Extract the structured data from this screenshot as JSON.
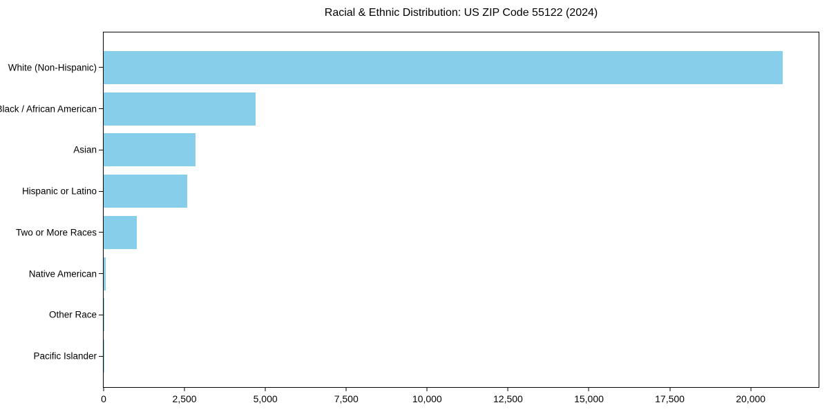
{
  "chart": {
    "title": "Racial & Ethnic Distribution: US ZIP Code 55122 (2024)"
  },
  "chart_data": {
    "type": "bar",
    "orientation": "horizontal",
    "title": "Racial & Ethnic Distribution: US ZIP Code 55122 (2024)",
    "xlabel": "",
    "ylabel": "",
    "categories": [
      "White (Non-Hispanic)",
      "Black / African American",
      "Asian",
      "Hispanic or Latino",
      "Two or More Races",
      "Native American",
      "Other Race",
      "Pacific Islander"
    ],
    "values": [
      21000,
      4700,
      2840,
      2590,
      1020,
      60,
      15,
      5
    ],
    "xlim": [
      0,
      22100
    ],
    "x_ticks": [
      0,
      2500,
      5000,
      7500,
      10000,
      12500,
      15000,
      17500,
      20000
    ],
    "x_tick_labels": [
      "0",
      "2,500",
      "5,000",
      "7,500",
      "10,000",
      "12,500",
      "15,000",
      "17,500",
      "20,000"
    ],
    "bar_color": "#87CEEB",
    "grid": false,
    "legend": "none",
    "plot_background": "#ffffff",
    "frame_color": "#000000"
  }
}
